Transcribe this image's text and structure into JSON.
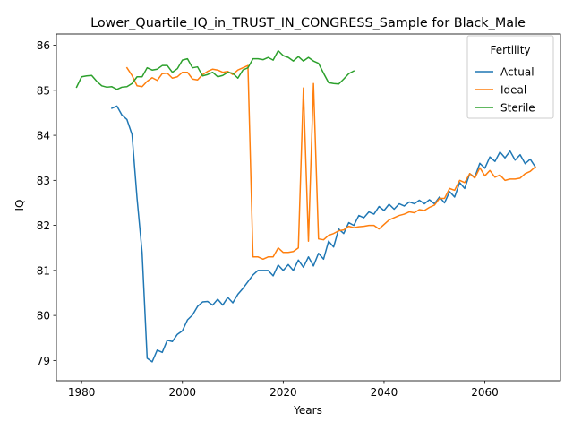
{
  "chart_data": {
    "type": "line",
    "title": "Lower_Quartile_IQ_in_TRUST_IN_CONGRESS_Sample for Black_Male",
    "xlabel": "Years",
    "ylabel": "IQ",
    "xlim": [
      1975,
      2075
    ],
    "ylim": [
      78.55,
      86.25
    ],
    "xticks": [
      1980,
      2000,
      2020,
      2040,
      2060
    ],
    "yticks": [
      79,
      80,
      81,
      82,
      83,
      84,
      85,
      86
    ],
    "grid": false,
    "legend": {
      "title": "Fertility",
      "position": "top-right"
    },
    "series": [
      {
        "name": "Actual",
        "color": "#1f77b4",
        "x": [
          1986,
          1987,
          1988,
          1989,
          1990,
          1991,
          1992,
          1993,
          1994,
          1995,
          1996,
          1997,
          1998,
          1999,
          2000,
          2001,
          2002,
          2003,
          2004,
          2005,
          2006,
          2007,
          2008,
          2009,
          2010,
          2011,
          2012,
          2013,
          2014,
          2015,
          2016,
          2017,
          2018,
          2019,
          2020,
          2021,
          2022,
          2023,
          2024,
          2025,
          2026,
          2027,
          2028,
          2029,
          2030,
          2031,
          2032,
          2033,
          2034,
          2035,
          2036,
          2037,
          2038,
          2039,
          2040,
          2041,
          2042,
          2043,
          2044,
          2045,
          2046,
          2047,
          2048,
          2049,
          2050,
          2051,
          2052,
          2053,
          2054,
          2055,
          2056,
          2057,
          2058,
          2059,
          2060,
          2061,
          2062,
          2063,
          2064,
          2065,
          2066,
          2067,
          2068,
          2069,
          2070
        ],
        "y": [
          84.6,
          84.65,
          84.45,
          84.35,
          84.02,
          82.6,
          81.4,
          79.05,
          78.97,
          79.23,
          79.18,
          79.45,
          79.42,
          79.58,
          79.66,
          79.9,
          80.01,
          80.2,
          80.3,
          80.31,
          80.23,
          80.36,
          80.23,
          80.4,
          80.28,
          80.47,
          80.6,
          80.75,
          80.9,
          81.0,
          81.0,
          81.0,
          80.88,
          81.12,
          81.0,
          81.13,
          81.0,
          81.23,
          81.07,
          81.3,
          81.1,
          81.38,
          81.25,
          81.65,
          81.52,
          81.92,
          81.82,
          82.06,
          82.0,
          82.22,
          82.17,
          82.3,
          82.25,
          82.42,
          82.33,
          82.47,
          82.36,
          82.48,
          82.43,
          82.52,
          82.48,
          82.56,
          82.48,
          82.57,
          82.48,
          82.63,
          82.5,
          82.75,
          82.63,
          82.95,
          82.82,
          83.15,
          83.07,
          83.38,
          83.27,
          83.52,
          83.42,
          83.63,
          83.5,
          83.65,
          83.45,
          83.57,
          83.37,
          83.47,
          83.3
        ]
      },
      {
        "name": "Ideal",
        "color": "#ff7f0e",
        "x": [
          1989,
          1990,
          1991,
          1992,
          1993,
          1994,
          1995,
          1996,
          1997,
          1998,
          1999,
          2000,
          2001,
          2002,
          2003,
          2004,
          2005,
          2006,
          2007,
          2008,
          2009,
          2010,
          2011,
          2012,
          2013,
          2014,
          2015,
          2016,
          2017,
          2018,
          2019,
          2020,
          2021,
          2022,
          2023,
          2024,
          2025,
          2026,
          2027,
          2028,
          2029,
          2030,
          2031,
          2032,
          2033,
          2034,
          2035,
          2036,
          2037,
          2038,
          2039,
          2040,
          2041,
          2042,
          2043,
          2044,
          2045,
          2046,
          2047,
          2048,
          2049,
          2050,
          2051,
          2052,
          2053,
          2054,
          2055,
          2056,
          2057,
          2058,
          2059,
          2060,
          2061,
          2062,
          2063,
          2064,
          2065,
          2066,
          2067,
          2068,
          2069,
          2070
        ],
        "y": [
          85.5,
          85.33,
          85.1,
          85.08,
          85.2,
          85.28,
          85.22,
          85.37,
          85.38,
          85.27,
          85.3,
          85.4,
          85.4,
          85.25,
          85.23,
          85.35,
          85.42,
          85.47,
          85.45,
          85.4,
          85.42,
          85.35,
          85.45,
          85.5,
          85.55,
          81.3,
          81.3,
          81.25,
          81.3,
          81.3,
          81.5,
          81.4,
          81.4,
          81.42,
          81.5,
          85.05,
          81.65,
          85.15,
          81.7,
          81.68,
          81.78,
          81.82,
          81.88,
          81.9,
          81.98,
          81.95,
          81.97,
          81.98,
          82.0,
          82.0,
          81.92,
          82.02,
          82.12,
          82.17,
          82.22,
          82.25,
          82.3,
          82.28,
          82.35,
          82.33,
          82.4,
          82.45,
          82.6,
          82.6,
          82.82,
          82.78,
          83.0,
          82.95,
          83.15,
          83.05,
          83.28,
          83.1,
          83.22,
          83.07,
          83.12,
          83.0,
          83.03,
          83.03,
          83.05,
          83.15,
          83.2,
          83.3
        ]
      },
      {
        "name": "Sterile",
        "color": "#2ca02c",
        "x": [
          1979,
          1980,
          1981,
          1982,
          1983,
          1984,
          1985,
          1986,
          1987,
          1988,
          1989,
          1990,
          1991,
          1992,
          1993,
          1994,
          1995,
          1996,
          1997,
          1998,
          1999,
          2000,
          2001,
          2002,
          2003,
          2004,
          2005,
          2006,
          2007,
          2008,
          2009,
          2010,
          2011,
          2012,
          2013,
          2014,
          2015,
          2016,
          2017,
          2018,
          2019,
          2020,
          2021,
          2022,
          2023,
          2024,
          2025,
          2026,
          2027,
          2028,
          2029,
          2030,
          2031,
          2032,
          2033,
          2034
        ],
        "y": [
          85.07,
          85.3,
          85.32,
          85.33,
          85.2,
          85.1,
          85.07,
          85.08,
          85.02,
          85.07,
          85.08,
          85.15,
          85.3,
          85.3,
          85.5,
          85.45,
          85.47,
          85.55,
          85.55,
          85.4,
          85.48,
          85.67,
          85.7,
          85.5,
          85.52,
          85.32,
          85.35,
          85.4,
          85.3,
          85.33,
          85.4,
          85.38,
          85.27,
          85.45,
          85.5,
          85.7,
          85.7,
          85.68,
          85.73,
          85.67,
          85.88,
          85.77,
          85.73,
          85.65,
          85.75,
          85.65,
          85.73,
          85.65,
          85.6,
          85.38,
          85.17,
          85.15,
          85.14,
          85.25,
          85.37,
          85.43
        ]
      }
    ]
  }
}
